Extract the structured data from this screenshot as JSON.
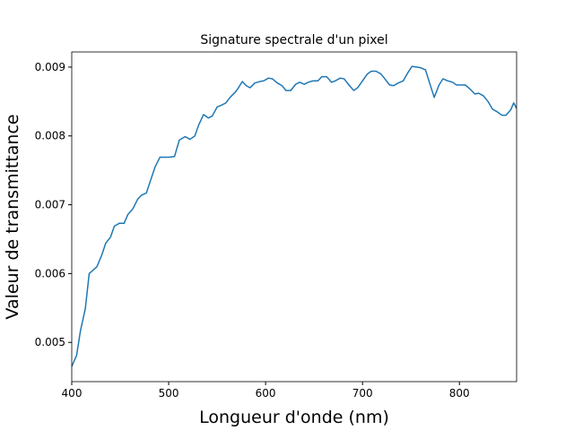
{
  "chart_data": {
    "type": "line",
    "title": "Signature spectrale d'un pixel",
    "x_label": "Longueur d'onde (nm)",
    "y_label": "Valeur de transmittance",
    "x": [
      400,
      405,
      409,
      414,
      418,
      426,
      431,
      435,
      440,
      444,
      449,
      454,
      458,
      463,
      468,
      472,
      477,
      481,
      486,
      491,
      495,
      500,
      506,
      511,
      517,
      522,
      527,
      531,
      536,
      541,
      545,
      550,
      555,
      559,
      564,
      569,
      572,
      576,
      580,
      584,
      589,
      594,
      598,
      603,
      607,
      612,
      617,
      621,
      626,
      631,
      635,
      640,
      644,
      649,
      654,
      658,
      663,
      668,
      672,
      677,
      681,
      686,
      691,
      695,
      700,
      705,
      709,
      714,
      719,
      723,
      728,
      732,
      737,
      742,
      746,
      751,
      756,
      760,
      765,
      769,
      774,
      779,
      783,
      788,
      793,
      797,
      802,
      806,
      811,
      816,
      820,
      825,
      830,
      834,
      839,
      844,
      848,
      853,
      856,
      859
    ],
    "series": [
      {
        "name": "Transmittance",
        "color": "#1f77b4",
        "values": [
          0.00465,
          0.00481,
          0.00517,
          0.00549,
          0.006,
          0.0061,
          0.00627,
          0.00644,
          0.00653,
          0.00669,
          0.00673,
          0.00673,
          0.00686,
          0.00694,
          0.00708,
          0.00714,
          0.00717,
          0.00734,
          0.00755,
          0.00769,
          0.00769,
          0.00769,
          0.0077,
          0.00794,
          0.00799,
          0.00795,
          0.008,
          0.00816,
          0.00831,
          0.00826,
          0.00829,
          0.00842,
          0.00845,
          0.00848,
          0.00857,
          0.00864,
          0.0087,
          0.00879,
          0.00873,
          0.0087,
          0.00877,
          0.00879,
          0.0088,
          0.00884,
          0.00883,
          0.00877,
          0.00873,
          0.00866,
          0.00866,
          0.00875,
          0.00878,
          0.00875,
          0.00878,
          0.0088,
          0.0088,
          0.00886,
          0.00886,
          0.00878,
          0.0088,
          0.00884,
          0.00883,
          0.00874,
          0.00866,
          0.0087,
          0.0088,
          0.0089,
          0.00894,
          0.00894,
          0.0089,
          0.00883,
          0.00874,
          0.00873,
          0.00877,
          0.0088,
          0.0089,
          0.00901,
          0.009,
          0.00899,
          0.00896,
          0.00878,
          0.00856,
          0.00874,
          0.00883,
          0.0088,
          0.00878,
          0.00874,
          0.00874,
          0.00874,
          0.00868,
          0.00861,
          0.00862,
          0.00858,
          0.00849,
          0.00839,
          0.00835,
          0.0083,
          0.0083,
          0.00838,
          0.00848,
          0.0084
        ]
      }
    ],
    "xlim": [
      400,
      859
    ],
    "ylim": [
      0.00443,
      0.00922
    ],
    "xticks": [
      400,
      500,
      600,
      700,
      800
    ],
    "yticks": [
      0.005,
      0.006,
      0.007,
      0.008,
      0.009
    ]
  }
}
